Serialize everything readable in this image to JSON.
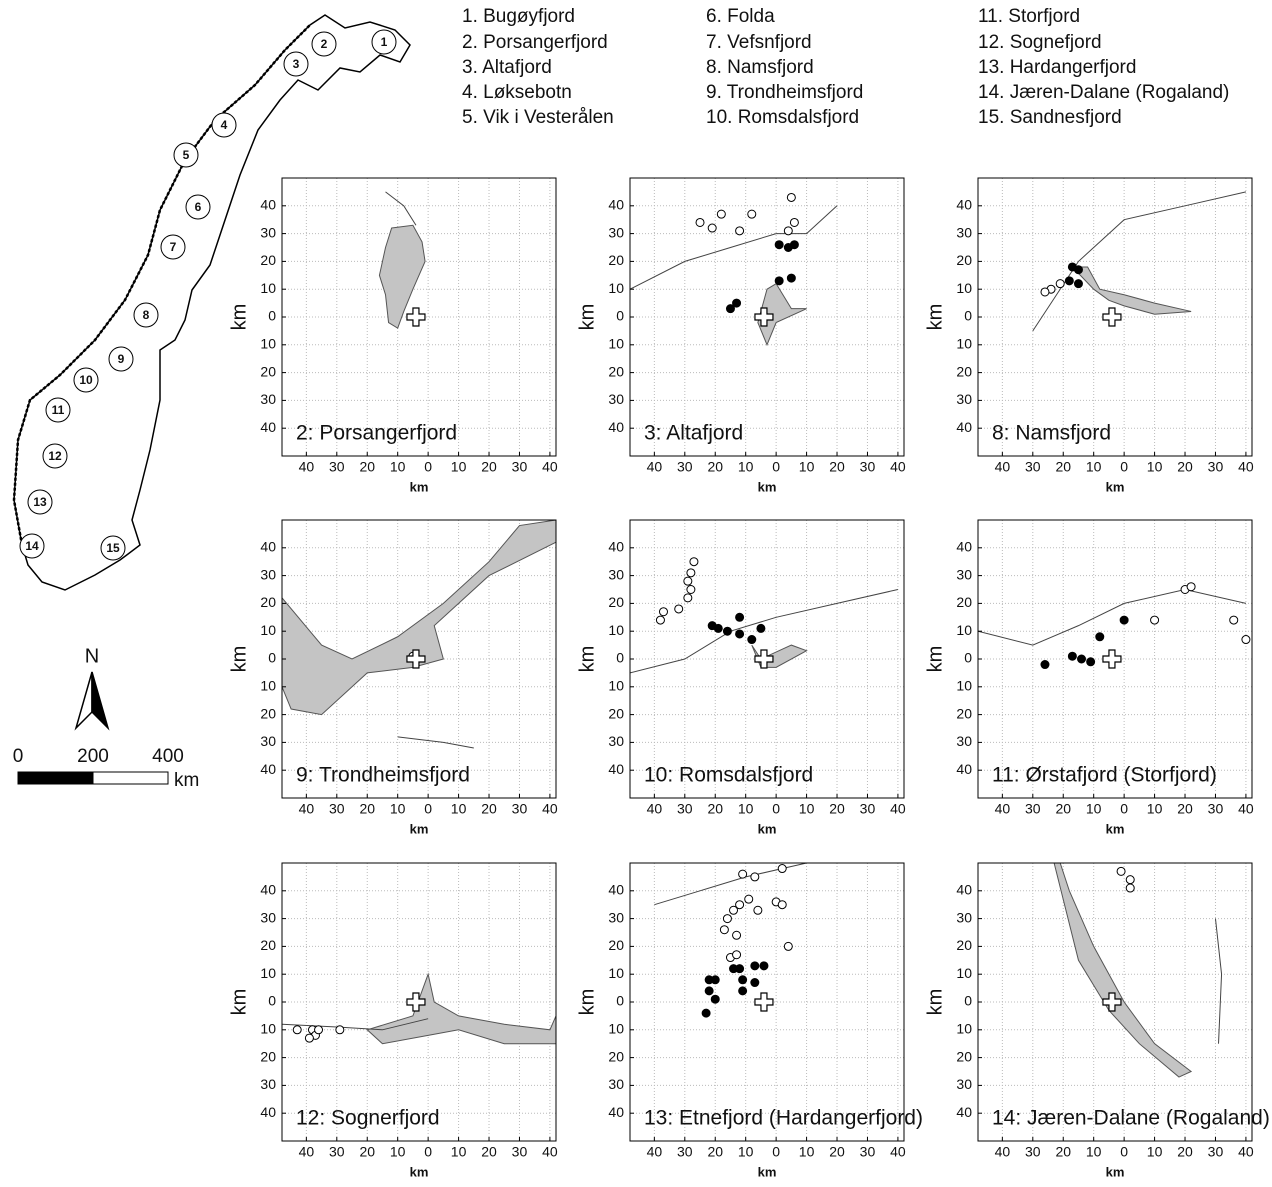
{
  "map": {
    "markers": [
      1,
      2,
      3,
      4,
      5,
      6,
      7,
      8,
      9,
      10,
      11,
      12,
      13,
      14,
      15
    ],
    "north": "N",
    "scale": {
      "ticks": [
        0,
        200,
        400
      ],
      "unit": "km"
    }
  },
  "legend": [
    "1. Bugøyfjord",
    "2. Porsangerfjord",
    "3. Altafjord",
    "4. Løksebotn",
    "5. Vik i Vesterålen",
    "6. Folda",
    "7. Vefsnfjord",
    "8. Namsfjord",
    "9. Trondheimsfjord",
    "10. Romsdalsfjord",
    "11. Storfjord",
    "12. Sognefjord",
    "13. Hardangerfjord",
    "14. Jæren-Dalane (Rogaland)",
    "15. Sandnesfjord"
  ],
  "axes": {
    "xlabel": "km",
    "ylabel": "km",
    "xlim": [
      -48,
      42
    ],
    "ylim": [
      -50,
      50
    ],
    "xticks": [
      {
        "value": -40,
        "label": "40"
      },
      {
        "value": -30,
        "label": "30"
      },
      {
        "value": -20,
        "label": "20"
      },
      {
        "value": -10,
        "label": "10"
      },
      0,
      10,
      20,
      30,
      40
    ],
    "yticks": [
      40,
      30,
      20,
      10,
      0,
      {
        "value": -10,
        "label": "10"
      },
      {
        "value": -20,
        "label": "20"
      },
      {
        "value": -30,
        "label": "30"
      },
      {
        "value": -40,
        "label": "40"
      }
    ]
  },
  "panels": [
    {
      "title": "2: Porsangerfjord",
      "reference": {
        "x": -4,
        "y": 0
      },
      "sites": []
    },
    {
      "title": "3: Altafjord",
      "reference": {
        "x": -4,
        "y": 0
      },
      "sites": [
        {
          "x": -25,
          "y": 34,
          "filled": false
        },
        {
          "x": -21,
          "y": 32,
          "filled": false
        },
        {
          "x": -12,
          "y": 31,
          "filled": false
        },
        {
          "x": -18,
          "y": 37,
          "filled": false
        },
        {
          "x": -8,
          "y": 37,
          "filled": false
        },
        {
          "x": 4,
          "y": 31,
          "filled": false
        },
        {
          "x": 5,
          "y": 43,
          "filled": false
        },
        {
          "x": 6,
          "y": 34,
          "filled": false
        },
        {
          "x": 1,
          "y": 26,
          "filled": true
        },
        {
          "x": 4,
          "y": 25,
          "filled": true
        },
        {
          "x": 6,
          "y": 26,
          "filled": true
        },
        {
          "x": 1,
          "y": 13,
          "filled": true
        },
        {
          "x": 5,
          "y": 14,
          "filled": true
        },
        {
          "x": -15,
          "y": 3,
          "filled": true
        },
        {
          "x": -13,
          "y": 5,
          "filled": true
        }
      ]
    },
    {
      "title": "8: Namsfjord",
      "reference": {
        "x": -4,
        "y": 0
      },
      "sites": [
        {
          "x": -17,
          "y": 18,
          "filled": true
        },
        {
          "x": -15,
          "y": 17,
          "filled": true
        },
        {
          "x": -18,
          "y": 13,
          "filled": true
        },
        {
          "x": -15,
          "y": 12,
          "filled": true
        },
        {
          "x": -24,
          "y": 10,
          "filled": false
        },
        {
          "x": -26,
          "y": 9,
          "filled": false
        },
        {
          "x": -21,
          "y": 12,
          "filled": false
        }
      ]
    },
    {
      "title": "9: Trondheimsfjord",
      "reference": {
        "x": -4,
        "y": 0
      },
      "sites": [
        {
          "x": -5,
          "y": 1,
          "filled": false
        }
      ]
    },
    {
      "title": "10: Romsdalsfjord",
      "reference": {
        "x": -4,
        "y": 0
      },
      "sites": [
        {
          "x": -27,
          "y": 35,
          "filled": false
        },
        {
          "x": -28,
          "y": 31,
          "filled": false
        },
        {
          "x": -29,
          "y": 28,
          "filled": false
        },
        {
          "x": -28,
          "y": 25,
          "filled": false
        },
        {
          "x": -29,
          "y": 22,
          "filled": false
        },
        {
          "x": -32,
          "y": 18,
          "filled": false
        },
        {
          "x": -37,
          "y": 17,
          "filled": false
        },
        {
          "x": -38,
          "y": 14,
          "filled": false
        },
        {
          "x": -21,
          "y": 12,
          "filled": true
        },
        {
          "x": -19,
          "y": 11,
          "filled": true
        },
        {
          "x": -16,
          "y": 10,
          "filled": true
        },
        {
          "x": -12,
          "y": 9,
          "filled": true
        },
        {
          "x": -8,
          "y": 7,
          "filled": true
        },
        {
          "x": -5,
          "y": 11,
          "filled": true
        },
        {
          "x": -12,
          "y": 15,
          "filled": true
        }
      ]
    },
    {
      "title": "11: Ørstafjord (Storfjord)",
      "reference": {
        "x": -4,
        "y": 0
      },
      "sites": [
        {
          "x": -26,
          "y": -2,
          "filled": true
        },
        {
          "x": -17,
          "y": 1,
          "filled": true
        },
        {
          "x": -14,
          "y": 0,
          "filled": true
        },
        {
          "x": -11,
          "y": -1,
          "filled": true
        },
        {
          "x": -8,
          "y": 8,
          "filled": true
        },
        {
          "x": 0,
          "y": 14,
          "filled": true
        },
        {
          "x": 10,
          "y": 14,
          "filled": false
        },
        {
          "x": 20,
          "y": 25,
          "filled": false
        },
        {
          "x": 22,
          "y": 26,
          "filled": false
        },
        {
          "x": 36,
          "y": 14,
          "filled": false
        },
        {
          "x": 40,
          "y": 7,
          "filled": false
        }
      ]
    },
    {
      "title": "12: Sognerfjord",
      "reference": {
        "x": -4,
        "y": 0
      },
      "sites": [
        {
          "x": -43,
          "y": -10,
          "filled": false
        },
        {
          "x": -38,
          "y": -10,
          "filled": false
        },
        {
          "x": -37,
          "y": -12,
          "filled": false
        },
        {
          "x": -36,
          "y": -10,
          "filled": false
        },
        {
          "x": -39,
          "y": -13,
          "filled": false
        },
        {
          "x": -29,
          "y": -10,
          "filled": false
        }
      ]
    },
    {
      "title": "13: Etnefjord (Hardangerfjord)",
      "reference": {
        "x": -4,
        "y": 0
      },
      "sites": [
        {
          "x": -22,
          "y": 8,
          "filled": true
        },
        {
          "x": -20,
          "y": 8,
          "filled": true
        },
        {
          "x": -22,
          "y": 4,
          "filled": true
        },
        {
          "x": -20,
          "y": 1,
          "filled": true
        },
        {
          "x": -23,
          "y": -4,
          "filled": true
        },
        {
          "x": -14,
          "y": 12,
          "filled": true
        },
        {
          "x": -12,
          "y": 12,
          "filled": true
        },
        {
          "x": -11,
          "y": 8,
          "filled": true
        },
        {
          "x": -11,
          "y": 4,
          "filled": true
        },
        {
          "x": -7,
          "y": 13,
          "filled": true
        },
        {
          "x": -4,
          "y": 13,
          "filled": true
        },
        {
          "x": -7,
          "y": 7,
          "filled": true
        },
        {
          "x": -11,
          "y": 46,
          "filled": false
        },
        {
          "x": -7,
          "y": 45,
          "filled": false
        },
        {
          "x": 2,
          "y": 48,
          "filled": false
        },
        {
          "x": -12,
          "y": 35,
          "filled": false
        },
        {
          "x": -9,
          "y": 37,
          "filled": false
        },
        {
          "x": -16,
          "y": 30,
          "filled": false
        },
        {
          "x": -14,
          "y": 33,
          "filled": false
        },
        {
          "x": -6,
          "y": 33,
          "filled": false
        },
        {
          "x": 0,
          "y": 36,
          "filled": false
        },
        {
          "x": 2,
          "y": 35,
          "filled": false
        },
        {
          "x": -17,
          "y": 26,
          "filled": false
        },
        {
          "x": -13,
          "y": 24,
          "filled": false
        },
        {
          "x": 4,
          "y": 20,
          "filled": false
        },
        {
          "x": -15,
          "y": 16,
          "filled": false
        },
        {
          "x": -13,
          "y": 17,
          "filled": false
        }
      ]
    },
    {
      "title": "14: Jæren-Dalane (Rogaland)",
      "reference": {
        "x": -4,
        "y": 0
      },
      "sites": [
        {
          "x": -1,
          "y": 47,
          "filled": false
        },
        {
          "x": 2,
          "y": 44,
          "filled": false
        },
        {
          "x": 2,
          "y": 41,
          "filled": false
        }
      ]
    }
  ]
}
